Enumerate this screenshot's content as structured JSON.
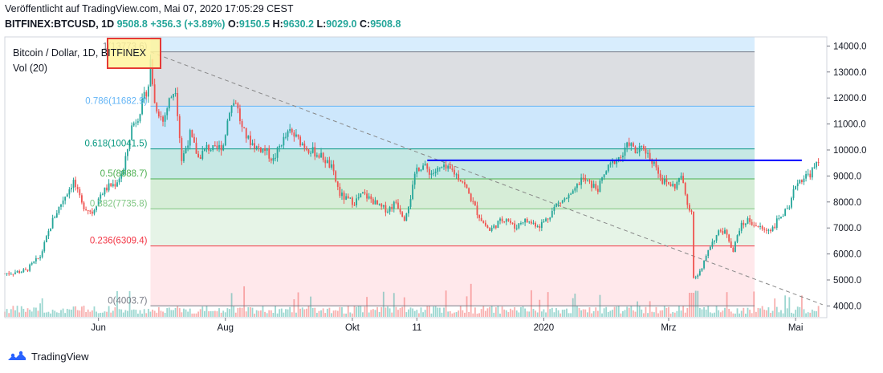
{
  "header": {
    "published": "Veröffentlicht auf TradingView.com, Mai 07, 2020 17:05:29 CEST",
    "symbol": "BITFINEX:BTCUSD, 1D",
    "last": "9508.8",
    "change": "+356.3 (+3.89%)",
    "o_label": "O:",
    "o_value": "9150.5",
    "h_label": "H:",
    "h_value": "9630.2",
    "l_label": "L:",
    "l_value": "9029.0",
    "c_label": "C:",
    "c_value": "9508.8"
  },
  "legend": {
    "instrument": "Bitcoin / Dollar, 1D, BITFINEX",
    "volume": "Vol (20)"
  },
  "footer": {
    "brand": "TradingView"
  },
  "colors": {
    "up": "#26a69a",
    "down": "#ef5350",
    "resistance": "#0000ff",
    "fib_0": "#787b86",
    "fib_236": "#f23645",
    "fib_382": "#81c784",
    "fib_5": "#4caf50",
    "fib_618": "#089981",
    "fib_786": "#64b5f6",
    "fib_1": "#787b86"
  },
  "chart_data": {
    "type": "candlestick",
    "ylim": [
      3550,
      14350
    ],
    "y_ticks": [
      "4000.0",
      "5000.0",
      "6000.0",
      "7000.0",
      "8000.0",
      "9000.0",
      "10000.0",
      "11000.0",
      "12000.0",
      "13000.0",
      "14000.0"
    ],
    "x_ticks": [
      {
        "label": "Jun",
        "day": 0
      },
      {
        "label": "Aug",
        "day": 61
      },
      {
        "label": "Okt",
        "day": 122
      },
      {
        "label": "11",
        "day": 153
      },
      {
        "label": "2020",
        "day": 214
      },
      {
        "label": "Mrz",
        "day": 274
      },
      {
        "label": "Mai",
        "day": 335
      }
    ],
    "x_range_days": [
      -45,
      350
    ],
    "fib_start_day": 25,
    "fib_end_day": 350,
    "fibonacci": [
      {
        "ratio": "1",
        "label": "1(13773.6)",
        "value": 13773.6
      },
      {
        "ratio": "0.786",
        "label": "0.786(11682.9)",
        "value": 11682.9
      },
      {
        "ratio": "0.618",
        "label": "0.618(10041.5)",
        "value": 10041.5
      },
      {
        "ratio": "0.5",
        "label": "0.5(8888.7)",
        "value": 8888.7
      },
      {
        "ratio": "0.382",
        "label": "0.382(7735.8)",
        "value": 7735.8
      },
      {
        "ratio": "0.236",
        "label": "0.236(6309.4)",
        "value": 6309.4
      },
      {
        "ratio": "0",
        "label": "0(4003.7)",
        "value": 4003.7
      }
    ],
    "resistance": {
      "value": 9600,
      "from_day": 158,
      "to_day": 338
    },
    "trendline": {
      "from_day": 25,
      "from_value": 13773.6,
      "to_day": 348,
      "to_value": 4050
    },
    "waypoints": [
      [
        -45,
        5250
      ],
      [
        -35,
        5350
      ],
      [
        -28,
        5900
      ],
      [
        -22,
        7300
      ],
      [
        -17,
        8100
      ],
      [
        -12,
        8800
      ],
      [
        -8,
        7900
      ],
      [
        -3,
        7600
      ],
      [
        1,
        8300
      ],
      [
        5,
        8600
      ],
      [
        8,
        8700
      ],
      [
        12,
        9200
      ],
      [
        16,
        10900
      ],
      [
        19,
        11300
      ],
      [
        24,
        12500
      ],
      [
        25,
        13400
      ],
      [
        27,
        11800
      ],
      [
        31,
        11100
      ],
      [
        34,
        11900
      ],
      [
        37,
        12400
      ],
      [
        40,
        9600
      ],
      [
        44,
        10600
      ],
      [
        48,
        9700
      ],
      [
        52,
        10100
      ],
      [
        56,
        10000
      ],
      [
        60,
        10200
      ],
      [
        63,
        11600
      ],
      [
        66,
        11900
      ],
      [
        69,
        10800
      ],
      [
        72,
        10400
      ],
      [
        76,
        10100
      ],
      [
        80,
        10000
      ],
      [
        84,
        9600
      ],
      [
        88,
        10300
      ],
      [
        92,
        10700
      ],
      [
        96,
        10400
      ],
      [
        100,
        10100
      ],
      [
        104,
        9900
      ],
      [
        108,
        9700
      ],
      [
        112,
        9300
      ],
      [
        116,
        8300
      ],
      [
        119,
        8100
      ],
      [
        123,
        8000
      ],
      [
        127,
        8300
      ],
      [
        131,
        8100
      ],
      [
        135,
        7800
      ],
      [
        139,
        7700
      ],
      [
        143,
        8000
      ],
      [
        147,
        7400
      ],
      [
        150,
        8200
      ],
      [
        153,
        9300
      ],
      [
        156,
        9400
      ],
      [
        160,
        9100
      ],
      [
        165,
        9300
      ],
      [
        170,
        9200
      ],
      [
        175,
        8800
      ],
      [
        178,
        8300
      ],
      [
        182,
        7600
      ],
      [
        185,
        7200
      ],
      [
        188,
        6900
      ],
      [
        192,
        7200
      ],
      [
        196,
        7400
      ],
      [
        200,
        7000
      ],
      [
        204,
        7300
      ],
      [
        208,
        7200
      ],
      [
        212,
        7100
      ],
      [
        216,
        7400
      ],
      [
        220,
        7900
      ],
      [
        224,
        8100
      ],
      [
        228,
        8300
      ],
      [
        232,
        8900
      ],
      [
        236,
        8700
      ],
      [
        240,
        8500
      ],
      [
        244,
        9200
      ],
      [
        248,
        9600
      ],
      [
        252,
        9800
      ],
      [
        255,
        10300
      ],
      [
        258,
        9900
      ],
      [
        262,
        10100
      ],
      [
        265,
        9700
      ],
      [
        268,
        9400
      ],
      [
        271,
        8800
      ],
      [
        274,
        8700
      ],
      [
        277,
        8600
      ],
      [
        280,
        9000
      ],
      [
        283,
        7900
      ],
      [
        285,
        7700
      ],
      [
        286,
        5000
      ],
      [
        288,
        5200
      ],
      [
        290,
        5400
      ],
      [
        293,
        6200
      ],
      [
        296,
        6600
      ],
      [
        299,
        6900
      ],
      [
        302,
        6800
      ],
      [
        305,
        6100
      ],
      [
        308,
        7000
      ],
      [
        312,
        7300
      ],
      [
        316,
        7100
      ],
      [
        320,
        6900
      ],
      [
        324,
        7000
      ],
      [
        328,
        7500
      ],
      [
        332,
        7700
      ],
      [
        335,
        8700
      ],
      [
        338,
        8900
      ],
      [
        342,
        9100
      ],
      [
        346,
        9500
      ]
    ]
  }
}
